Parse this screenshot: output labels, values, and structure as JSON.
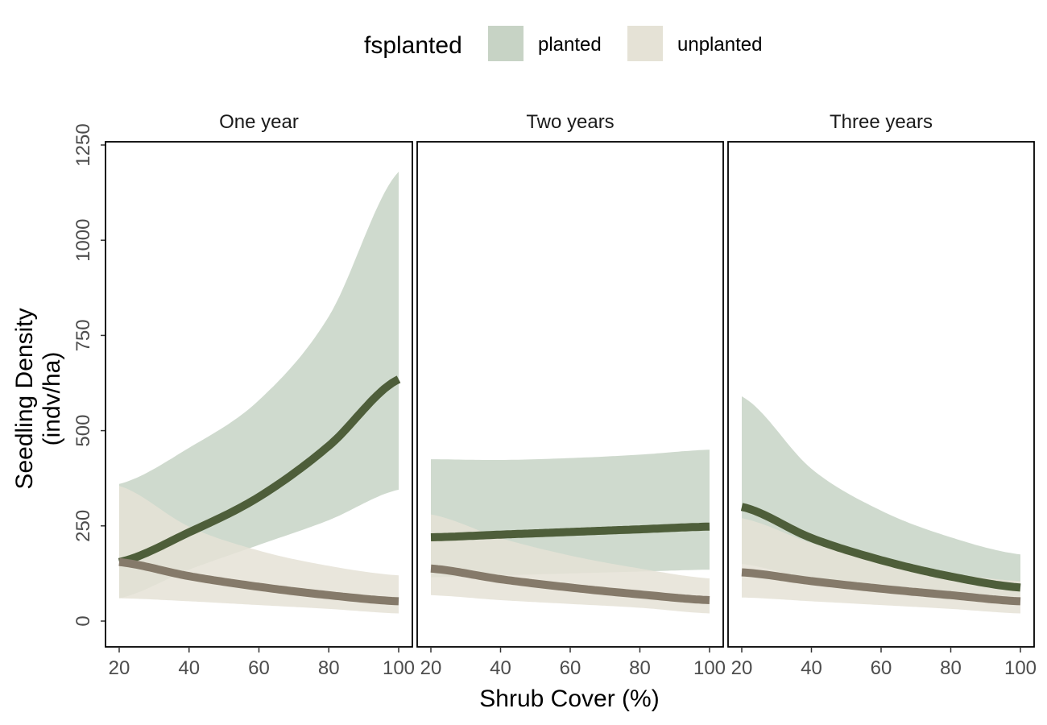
{
  "chart_data": {
    "type": "line",
    "legend": {
      "title": "fsplanted",
      "entries": [
        {
          "label": "planted",
          "ribbon_color": "#c7d3c5",
          "line_color": "#4e5e3a"
        },
        {
          "label": "unplanted",
          "ribbon_color": "#e5e2d6",
          "line_color": "#857a6a"
        }
      ],
      "placement": "top"
    },
    "xlabel": "Shrub Cover (%)",
    "ylabel": [
      "Seedling Density",
      "(indv/ha)"
    ],
    "xlim": [
      20,
      100
    ],
    "ylim": [
      -65,
      1250
    ],
    "x_ticks": [
      20,
      40,
      60,
      80,
      100
    ],
    "x_tick_labels": [
      "20",
      "40",
      "60",
      "80",
      "100"
    ],
    "y_ticks": [
      0,
      250,
      500,
      750,
      1000,
      1250
    ],
    "y_tick_labels": [
      "0",
      "250",
      "500",
      "750",
      "1000",
      "1250"
    ],
    "grid": false,
    "panels": [
      {
        "title": "One year",
        "series": [
          {
            "name": "planted",
            "x": [
              20,
              40,
              60,
              80,
              100
            ],
            "y": [
              155,
              233,
              326,
              460,
              635
            ],
            "lower": [
              60,
              135,
              200,
              265,
              345
            ],
            "upper": [
              360,
              455,
              580,
              800,
              1180
            ]
          },
          {
            "name": "unplanted",
            "x": [
              20,
              40,
              60,
              80,
              100
            ],
            "y": [
              155,
              118,
              90,
              68,
              52
            ],
            "lower": [
              60,
              52,
              42,
              32,
              20
            ],
            "upper": [
              355,
              248,
              185,
              145,
              120
            ]
          }
        ]
      },
      {
        "title": "Two years",
        "series": [
          {
            "name": "planted",
            "x": [
              20,
              40,
              60,
              80,
              100
            ],
            "y": [
              220,
              227,
              234,
              241,
              248
            ],
            "lower": [
              115,
              120,
              125,
              130,
              135
            ],
            "upper": [
              425,
              423,
              428,
              437,
              450
            ]
          },
          {
            "name": "unplanted",
            "x": [
              20,
              40,
              60,
              80,
              100
            ],
            "y": [
              138,
              110,
              88,
              70,
              55
            ],
            "lower": [
              68,
              55,
              45,
              35,
              20
            ],
            "upper": [
              280,
              218,
              172,
              138,
              112
            ]
          }
        ]
      },
      {
        "title": "Three years",
        "series": [
          {
            "name": "planted",
            "x": [
              20,
              40,
              60,
              80,
              100
            ],
            "y": [
              300,
              218,
              160,
              117,
              88
            ],
            "lower": [
              150,
              110,
              88,
              72,
              65
            ],
            "upper": [
              590,
              400,
              290,
              220,
              175
            ]
          },
          {
            "name": "unplanted",
            "x": [
              20,
              40,
              60,
              80,
              100
            ],
            "y": [
              128,
              105,
              85,
              68,
              52
            ],
            "lower": [
              62,
              52,
              42,
              32,
              20
            ],
            "upper": [
              270,
              205,
              158,
              125,
              105
            ]
          }
        ]
      }
    ]
  }
}
